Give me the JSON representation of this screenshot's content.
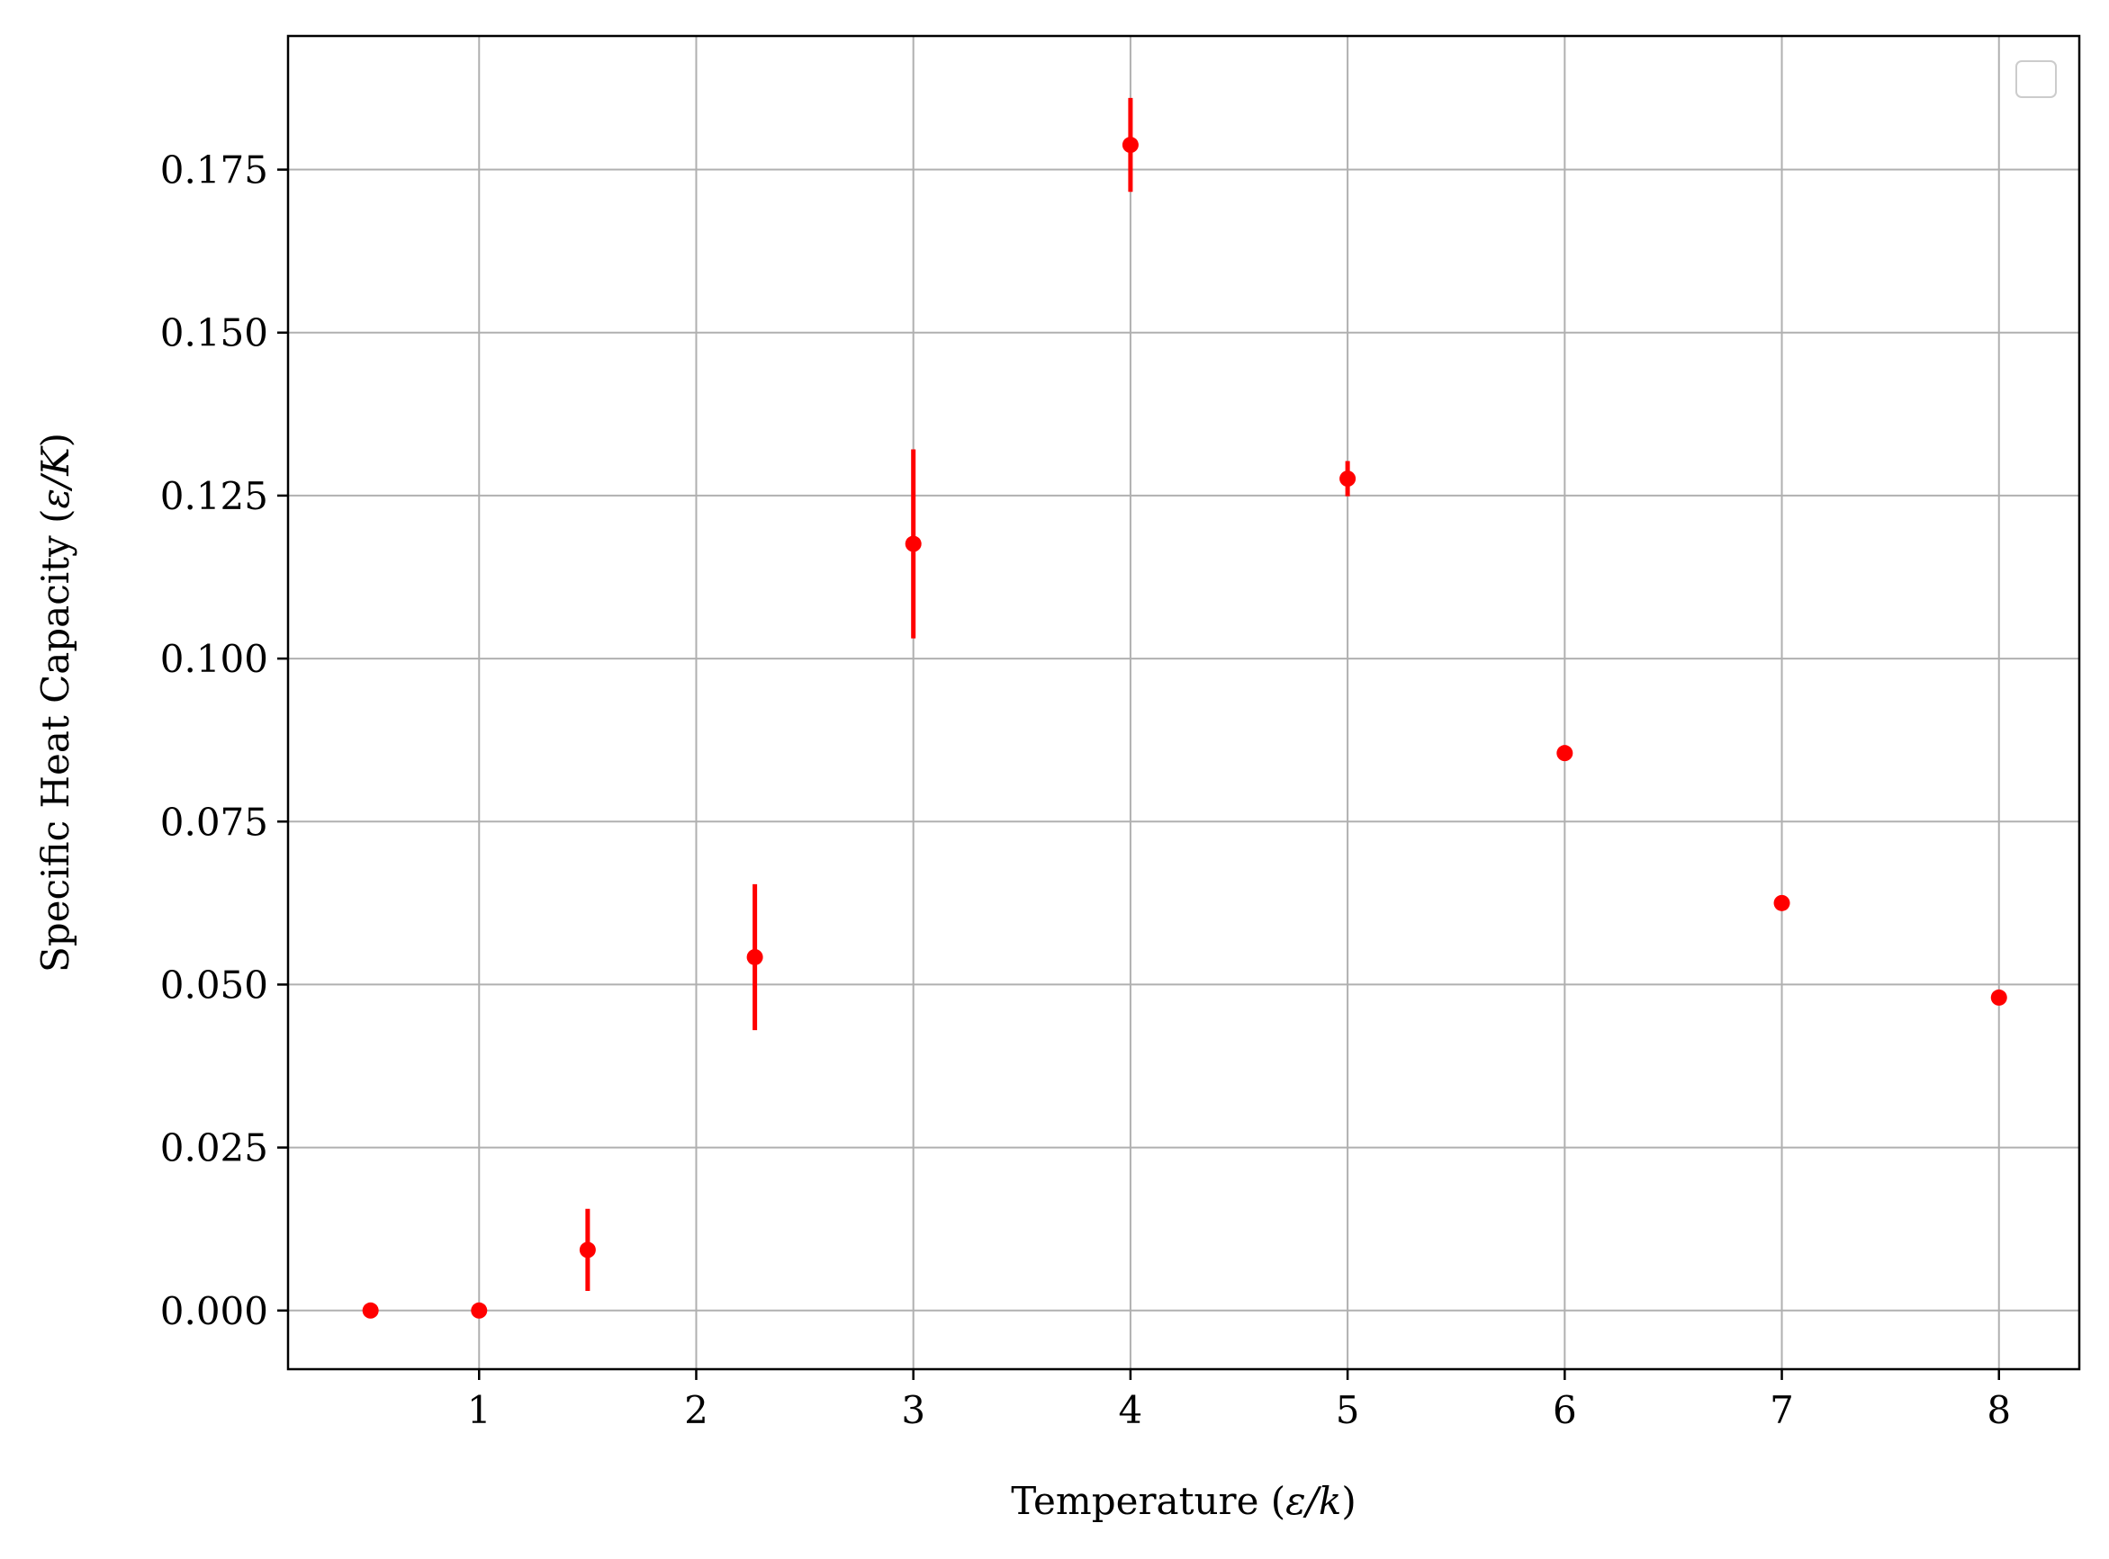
{
  "chart_data": {
    "type": "scatter",
    "title": "",
    "xlabel": "Temperature (ε/k)",
    "xlabel_parts": {
      "prefix": "Temperature (",
      "symbol": "ε/k",
      "suffix": ")"
    },
    "ylabel": "Specific Heat Capacity (ε/K)",
    "ylabel_parts": {
      "prefix": "Specific Heat Capacity (",
      "symbol": "ε/K",
      "suffix": ")"
    },
    "xlim": [
      0.12,
      8.37
    ],
    "ylim": [
      -0.009,
      0.1955
    ],
    "x_ticks": [
      1,
      2,
      3,
      4,
      5,
      6,
      7,
      8
    ],
    "x_tick_labels": [
      "1",
      "2",
      "3",
      "4",
      "5",
      "6",
      "7",
      "8"
    ],
    "y_ticks": [
      0.0,
      0.025,
      0.05,
      0.075,
      0.1,
      0.125,
      0.15,
      0.175
    ],
    "y_tick_labels": [
      "0.000",
      "0.025",
      "0.050",
      "0.075",
      "0.100",
      "0.125",
      "0.150",
      "0.175"
    ],
    "grid": true,
    "legend": {
      "placement": "top-right",
      "entries": []
    },
    "colors": {
      "series": "#ff0000",
      "grid": "#b0b0b0",
      "axes": "#000000",
      "legend_border": "#cccccc"
    },
    "series": [
      {
        "x": [
          0.5,
          1.0,
          1.5,
          2.27,
          3.0,
          4.0,
          5.0,
          6.0,
          7.0,
          8.0
        ],
        "y": [
          0.0,
          0.0,
          0.0093,
          0.0542,
          0.1176,
          0.1788,
          0.1276,
          0.0855,
          0.0625,
          0.048
        ],
        "yerr": [
          0.0,
          0.0,
          0.0063,
          0.0112,
          0.0145,
          0.0072,
          0.0027,
          0.0,
          0.0,
          0.0
        ]
      }
    ]
  }
}
